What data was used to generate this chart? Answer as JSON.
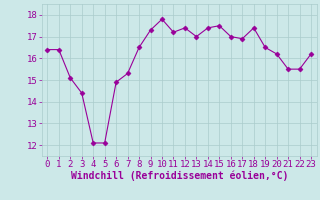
{
  "x": [
    0,
    1,
    2,
    3,
    4,
    5,
    6,
    7,
    8,
    9,
    10,
    11,
    12,
    13,
    14,
    15,
    16,
    17,
    18,
    19,
    20,
    21,
    22,
    23
  ],
  "y": [
    16.4,
    16.4,
    15.1,
    14.4,
    12.1,
    12.1,
    14.9,
    15.3,
    16.5,
    17.3,
    17.8,
    17.2,
    17.4,
    17.0,
    17.4,
    17.5,
    17.0,
    16.9,
    17.4,
    16.5,
    16.2,
    15.5,
    15.5,
    16.2
  ],
  "line_color": "#990099",
  "marker": "D",
  "marker_size": 2.5,
  "bg_color": "#cce8e8",
  "grid_color": "#aacccc",
  "xlabel": "Windchill (Refroidissement éolien,°C)",
  "xlabel_fontsize": 7,
  "tick_fontsize": 6.5,
  "ylim": [
    11.5,
    18.5
  ],
  "yticks": [
    12,
    13,
    14,
    15,
    16,
    17,
    18
  ],
  "xticks": [
    0,
    1,
    2,
    3,
    4,
    5,
    6,
    7,
    8,
    9,
    10,
    11,
    12,
    13,
    14,
    15,
    16,
    17,
    18,
    19,
    20,
    21,
    22,
    23
  ]
}
